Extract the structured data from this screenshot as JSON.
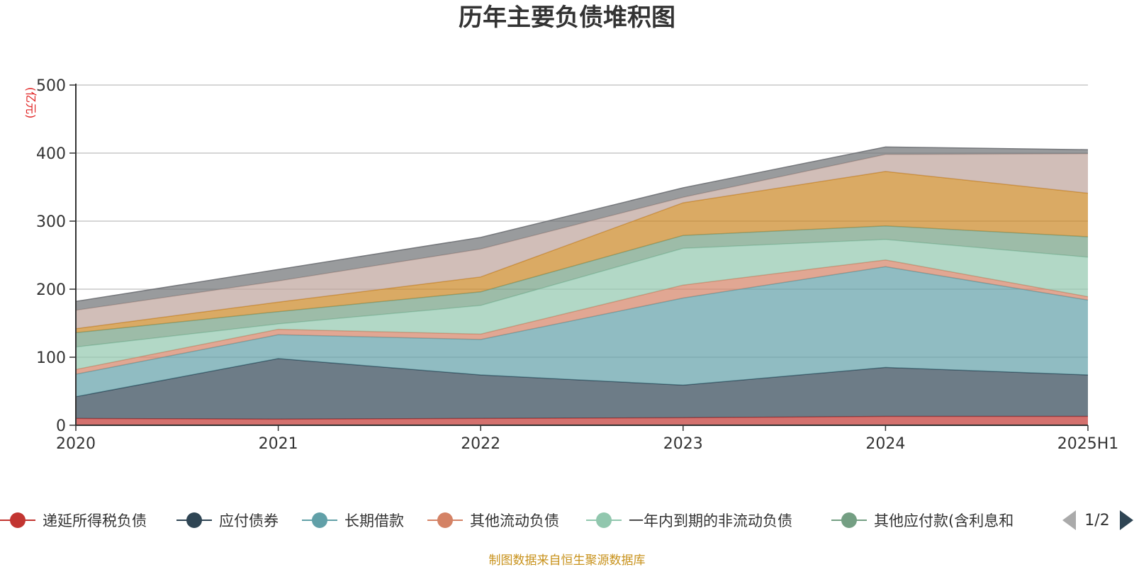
{
  "chart_data": {
    "type": "area",
    "stacked": true,
    "title": "历年主要负债堆积图",
    "unit_label": "(亿元)",
    "x": [
      "2020",
      "2021",
      "2022",
      "2023",
      "2024",
      "2025H1"
    ],
    "ylim": [
      0,
      500
    ],
    "yticks": [
      0,
      100,
      200,
      300,
      400,
      500
    ],
    "grid": true,
    "series": [
      {
        "name": "递延所得税负债",
        "color": "#c23531",
        "values": [
          10,
          9,
          10,
          11,
          13,
          13
        ]
      },
      {
        "name": "应付债券",
        "color": "#2f4554",
        "values": [
          32,
          89,
          64,
          48,
          72,
          61
        ]
      },
      {
        "name": "长期借款",
        "color": "#61a0a8",
        "values": [
          33,
          35,
          52,
          128,
          148,
          110
        ]
      },
      {
        "name": "其他流动负债",
        "color": "#d48265",
        "values": [
          7,
          8,
          8,
          19,
          10,
          5
        ]
      },
      {
        "name": "一年内到期的非流动负债",
        "color": "#91c7ae",
        "values": [
          33,
          8,
          42,
          54,
          30,
          58
        ]
      },
      {
        "name": "其他应付款(含利息和股利)",
        "color": "#749f83",
        "values": [
          21,
          18,
          20,
          19,
          20,
          30
        ]
      },
      {
        "name": "",
        "color": "#ca8622",
        "values": [
          6,
          14,
          22,
          48,
          80,
          64
        ]
      },
      {
        "name": "",
        "color": "#bda29a",
        "values": [
          27,
          31,
          41,
          8,
          25,
          58
        ]
      },
      {
        "name": "",
        "color": "#6e7074",
        "values": [
          13,
          17,
          17,
          14,
          11,
          6
        ]
      }
    ],
    "legend_position": "bottom",
    "legend_page": "1/2"
  },
  "footer": {
    "source": "制图数据来自恒生聚源数据库"
  }
}
